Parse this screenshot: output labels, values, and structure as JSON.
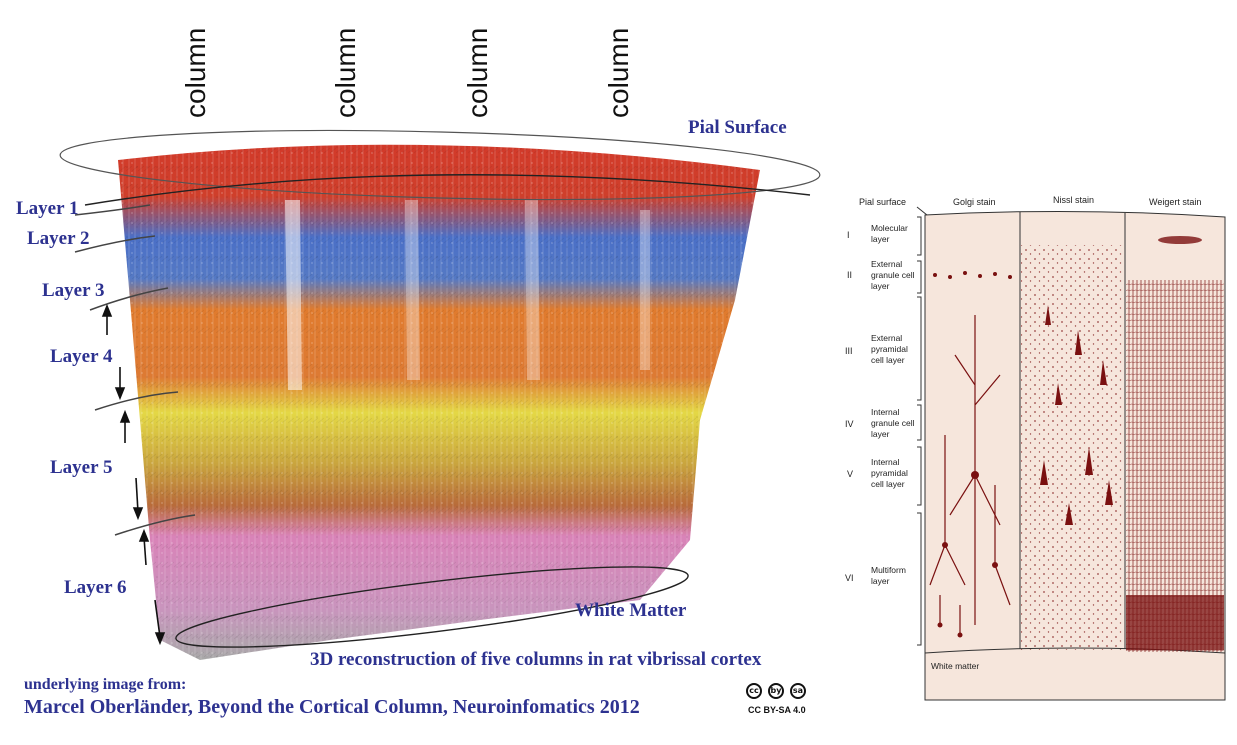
{
  "left_figure": {
    "column_labels": [
      "column",
      "column",
      "column",
      "column"
    ],
    "pial_surface": "Pial Surface",
    "white_matter": "White Matter",
    "layers": [
      "Layer 1",
      "Layer 2",
      "Layer 3",
      "Layer 4",
      "Layer 5",
      "Layer 6"
    ],
    "caption": "3D reconstruction of five columns in rat vibrissal cortex",
    "source_intro": "underlying image from:",
    "source_citation": "Marcel Oberländer, Beyond the Cortical Column, Neuroinfomatics 2012",
    "license": "CC BY-SA 4.0",
    "license_icons": [
      "cc",
      "by",
      "sa"
    ]
  },
  "right_figure": {
    "pial_surface": "Pial surface",
    "stains": [
      "Golgi stain",
      "Nissl stain",
      "Weigert stain"
    ],
    "layers": [
      {
        "numeral": "I",
        "name": "Molecular layer"
      },
      {
        "numeral": "II",
        "name": "External granule cell layer"
      },
      {
        "numeral": "III",
        "name": "External pyramidal cell layer"
      },
      {
        "numeral": "IV",
        "name": "Internal granule cell layer"
      },
      {
        "numeral": "V",
        "name": "Internal pyramidal cell layer"
      },
      {
        "numeral": "VI",
        "name": "Multiform layer"
      }
    ],
    "white_matter": "White matter"
  },
  "colors": {
    "label_blue": "#2d3290",
    "stain_dark": "#7a1010",
    "panel_bg": "#f6e6dc"
  }
}
